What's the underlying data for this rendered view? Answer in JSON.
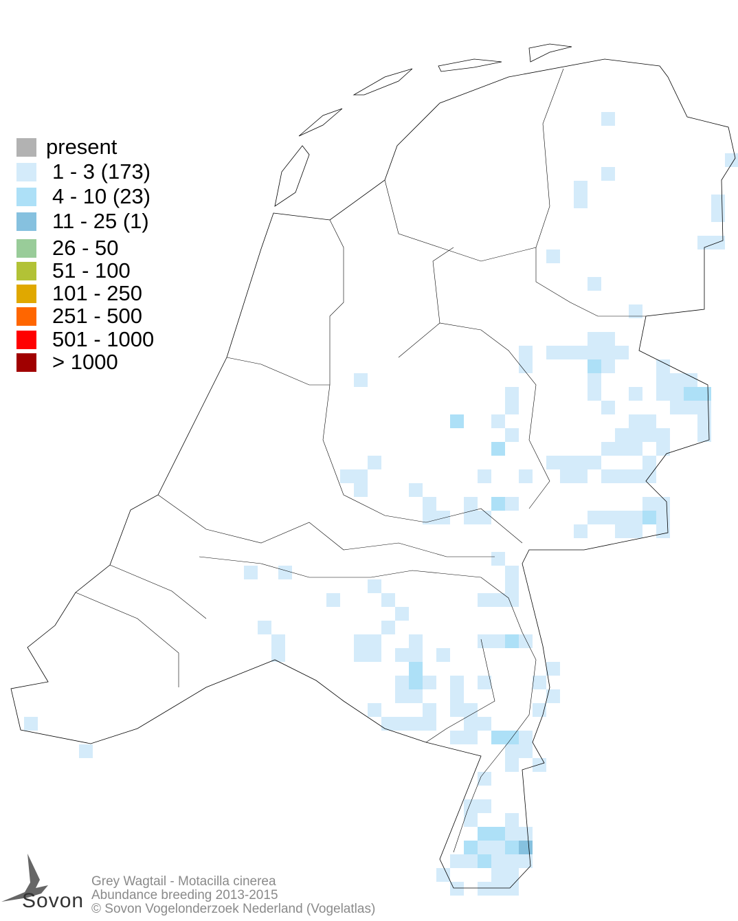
{
  "title": "Grey Wagtail - Motacilla cinerea",
  "subtitle": "Abundance breeding 2013-2015",
  "copyright": "© Sovon Vogelonderzoek Nederland (Vogelatlas)",
  "logo_text": "Sovon",
  "legend": [
    {
      "label": "present",
      "color": "#b2b2b2"
    },
    {
      "label": "1 - 3 (173)",
      "color": "#d4ebfa"
    },
    {
      "label": "4 - 10 (23)",
      "color": "#ade0f7"
    },
    {
      "label": "11 - 25 (1)",
      "color": "#86c1df"
    },
    {
      "label": "26 - 50",
      "color": "#99cc99"
    },
    {
      "label": "51 - 100",
      "color": "#b2c236"
    },
    {
      "label": "101 - 250",
      "color": "#e0a800"
    },
    {
      "label": "251 - 500",
      "color": "#ff6600"
    },
    {
      "label": "501 - 1000",
      "color": "#ff0000"
    },
    {
      "label": "> 1000",
      "color": "#a00000"
    }
  ]
}
